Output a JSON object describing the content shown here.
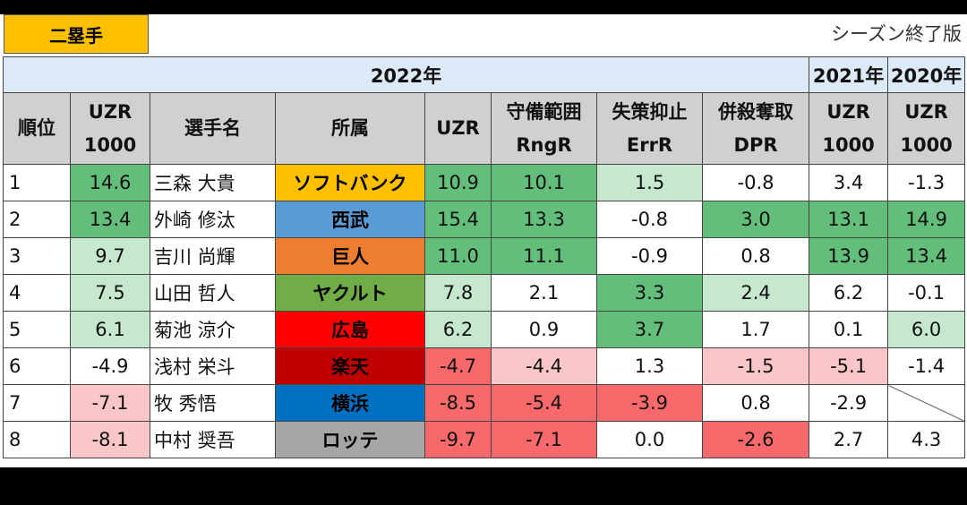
{
  "title": "二塁手",
  "edition": "シーズン終了版",
  "band": {
    "y2022": "2022年",
    "y2021": "2021年",
    "y2020": "2020年"
  },
  "headers": {
    "rank": "順位",
    "uzr1000_line1": "UZR",
    "uzr1000_line2": "1000",
    "name": "選手名",
    "team": "所属",
    "uzr": "UZR",
    "rng_line1": "守備範囲",
    "rng_line2": "RngR",
    "err_line1": "失策抑止",
    "err_line2": "ErrR",
    "dpr_line1": "併殺奪取",
    "dpr_line2": "DPR",
    "y2021_line1": "UZR",
    "y2021_line2": "1000",
    "y2020_line1": "UZR",
    "y2020_line2": "1000"
  },
  "colors": {
    "green_strong": "#63be7b",
    "green_light": "#c6e8cf",
    "red_strong": "#f8696b",
    "red_light": "#fbc6c7",
    "header_gray": "#d0d0d0",
    "band_blue": "#dce9f6",
    "title_yellow": "#ffc000"
  },
  "rows": [
    {
      "rank": "1",
      "uzr1000": "14.6",
      "name": "三森 大貴",
      "team": "ソフトバンク",
      "team_bg": "#ffc000",
      "team_fg": "#000000",
      "uzr": "10.9",
      "rngr": "10.1",
      "errr": "1.5",
      "dpr": "-0.8",
      "uzr1000_2021": "3.4",
      "uzr1000_2020": "-1.3"
    },
    {
      "rank": "2",
      "uzr1000": "13.4",
      "name": "外崎 修汰",
      "team": "西武",
      "team_bg": "#5b9bd5",
      "team_fg": "#000000",
      "uzr": "15.4",
      "rngr": "13.3",
      "errr": "-0.8",
      "dpr": "3.0",
      "uzr1000_2021": "13.1",
      "uzr1000_2020": "14.9"
    },
    {
      "rank": "3",
      "uzr1000": "9.7",
      "name": "吉川 尚輝",
      "team": "巨人",
      "team_bg": "#ed7d31",
      "team_fg": "#000000",
      "uzr": "11.0",
      "rngr": "11.1",
      "errr": "-0.9",
      "dpr": "0.8",
      "uzr1000_2021": "13.9",
      "uzr1000_2020": "13.4"
    },
    {
      "rank": "4",
      "uzr1000": "7.5",
      "name": "山田 哲人",
      "team": "ヤクルト",
      "team_bg": "#70ad47",
      "team_fg": "#000000",
      "uzr": "7.8",
      "rngr": "2.1",
      "errr": "3.3",
      "dpr": "2.4",
      "uzr1000_2021": "6.2",
      "uzr1000_2020": "-0.1"
    },
    {
      "rank": "5",
      "uzr1000": "6.1",
      "name": "菊池 涼介",
      "team": "広島",
      "team_bg": "#ff0000",
      "team_fg": "#000000",
      "uzr": "6.2",
      "rngr": "0.9",
      "errr": "3.7",
      "dpr": "1.7",
      "uzr1000_2021": "0.1",
      "uzr1000_2020": "6.0"
    },
    {
      "rank": "6",
      "uzr1000": "-4.9",
      "name": "浅村 栄斗",
      "team": "楽天",
      "team_bg": "#c00000",
      "team_fg": "#000000",
      "uzr": "-4.7",
      "rngr": "-4.4",
      "errr": "1.3",
      "dpr": "-1.5",
      "uzr1000_2021": "-5.1",
      "uzr1000_2020": "-1.4"
    },
    {
      "rank": "7",
      "uzr1000": "-7.1",
      "name": "牧 秀悟",
      "team": "横浜",
      "team_bg": "#0070c0",
      "team_fg": "#000000",
      "uzr": "-8.5",
      "rngr": "-5.4",
      "errr": "-3.9",
      "dpr": "0.8",
      "uzr1000_2021": "-2.9",
      "uzr1000_2020": ""
    },
    {
      "rank": "8",
      "uzr1000": "-8.1",
      "name": "中村 奨吾",
      "team": "ロッテ",
      "team_bg": "#a6a6a6",
      "team_fg": "#000000",
      "uzr": "-9.7",
      "rngr": "-7.1",
      "errr": "0.0",
      "dpr": "-2.6",
      "uzr1000_2021": "2.7",
      "uzr1000_2020": "4.3"
    }
  ]
}
